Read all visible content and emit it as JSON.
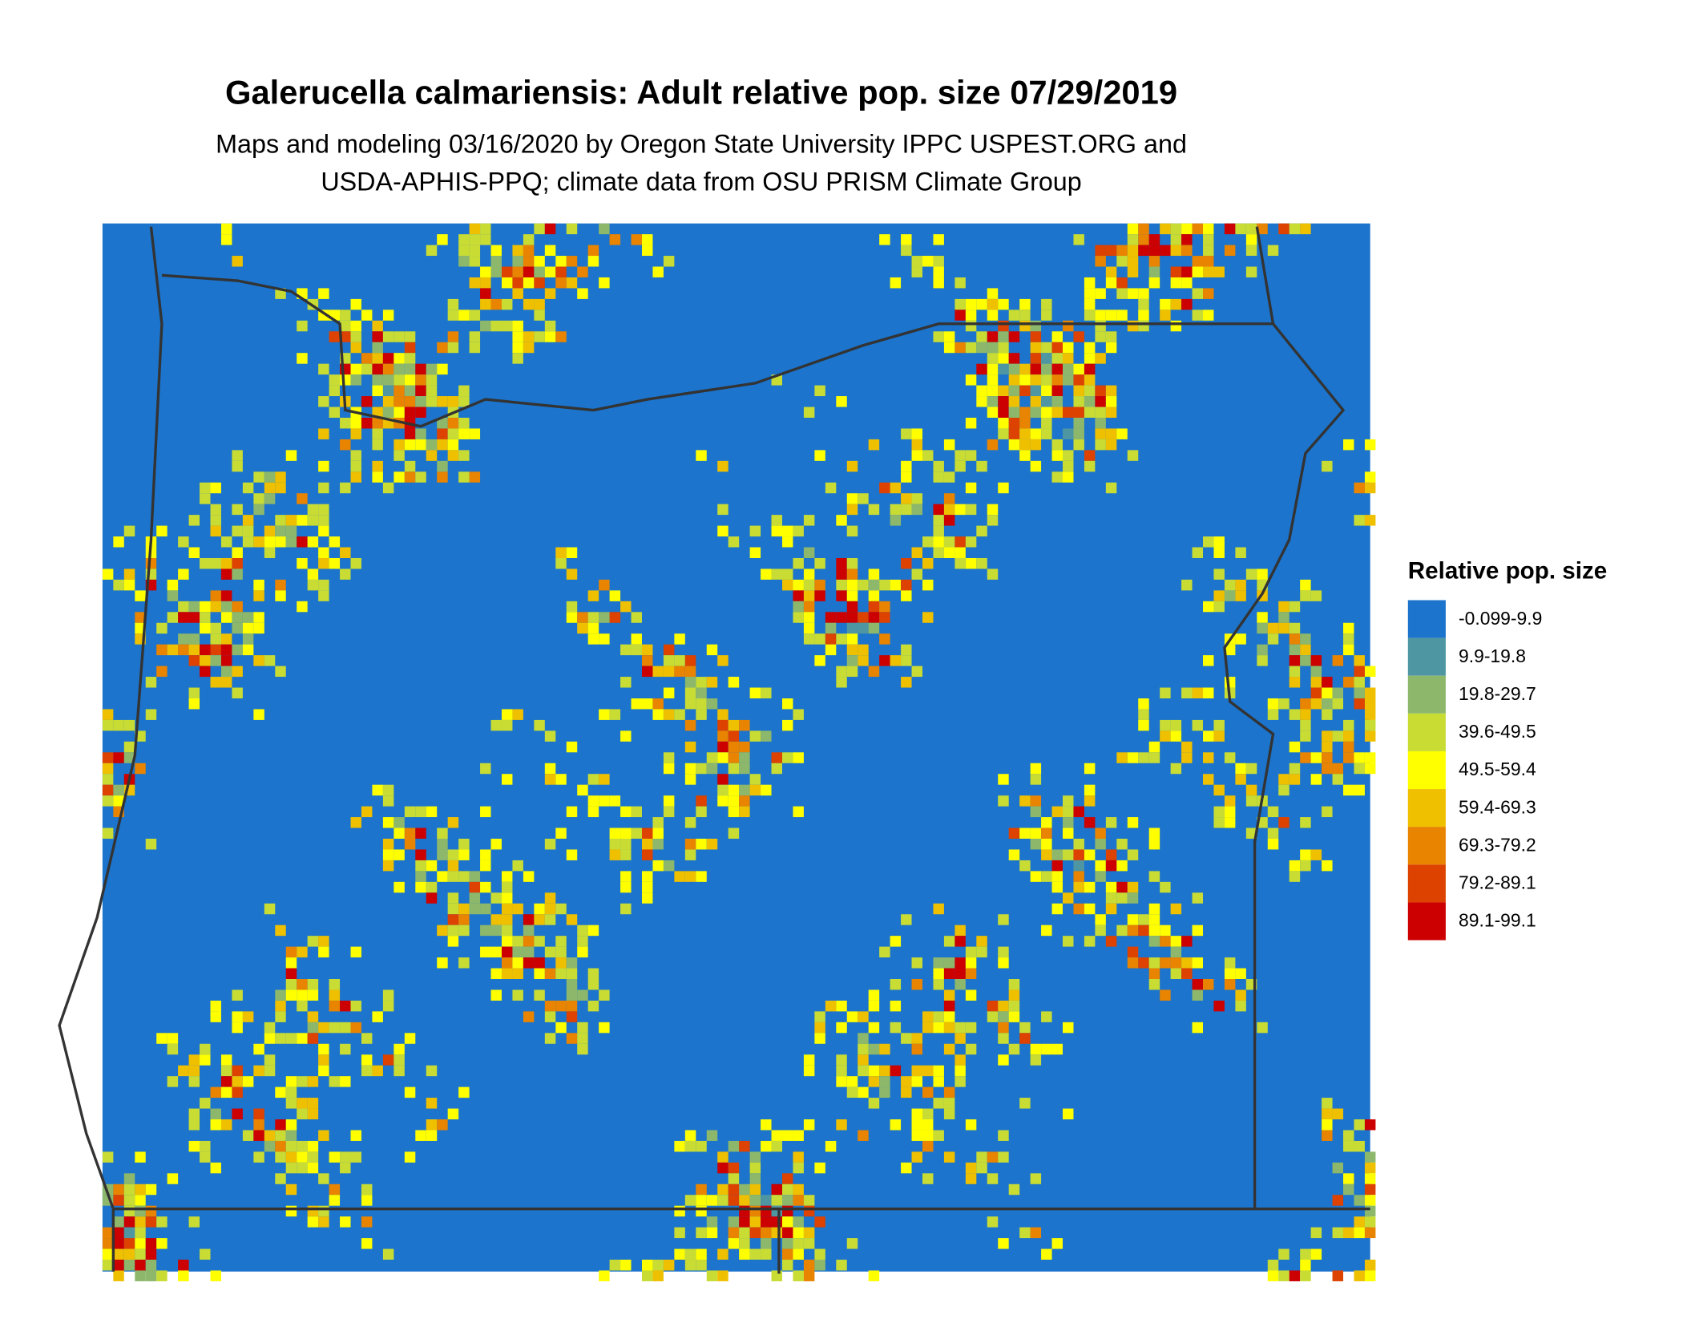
{
  "title": "Galerucella calmariensis: Adult relative pop. size 07/29/2019",
  "subtitle": [
    "Maps and modeling 03/16/2020 by Oregon State University IPPC USPEST.ORG and",
    "USDA-APHIS-PPQ; climate data from OSU PRISM Climate Group"
  ],
  "legend": {
    "title": "Relative pop. size",
    "items": [
      {
        "label": "-0.099-9.9",
        "color": "#1c74cc"
      },
      {
        "label": "9.9-19.8",
        "color": "#4f96a3"
      },
      {
        "label": "19.8-29.7",
        "color": "#8db86b"
      },
      {
        "label": "39.6-49.5",
        "color": "#c8dc34"
      },
      {
        "label": "49.5-59.4",
        "color": "#ffff00"
      },
      {
        "label": "59.4-69.3",
        "color": "#efc000"
      },
      {
        "label": "69.3-79.2",
        "color": "#e88400"
      },
      {
        "label": "79.2-89.1",
        "color": "#dd4200"
      },
      {
        "label": "89.1-99.1",
        "color": "#cc0000"
      }
    ]
  }
}
